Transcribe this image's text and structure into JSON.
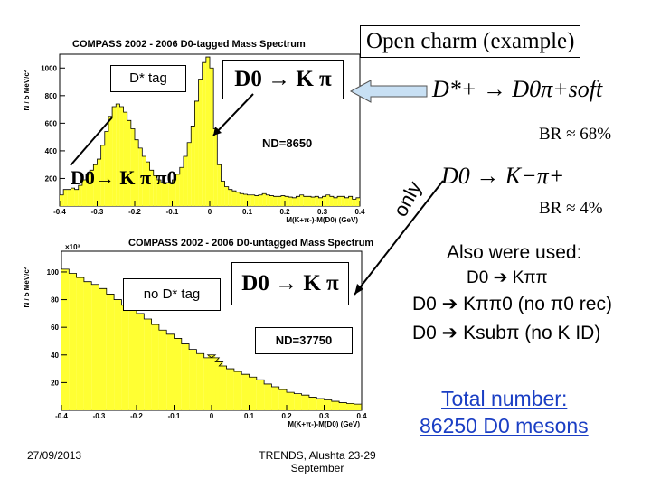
{
  "slide": {
    "title": "Open charm (example)",
    "date": "27/09/2013",
    "footer_line1": "TRENDS, Alushta 23-29",
    "footer_line2": "September",
    "only_label": "only",
    "accent": "#ffff33",
    "title_border": "#000000"
  },
  "top_panel": {
    "tag_label": "D* tag",
    "decay_label": "D0 → K π",
    "side_decay_label": "D0→ K π π0",
    "nd_label": "ND=8650"
  },
  "bottom_panel": {
    "tag_label": "no D* tag",
    "decay_label": "D0 → K π",
    "nd_label": "ND=37750"
  },
  "right_side": {
    "formula1": "D*+ → D0π+soft",
    "br1": "BR ≈ 68%",
    "formula2": "D0 → K−π+",
    "br2": "BR ≈ 4%",
    "also_used": "Also were used:",
    "line1": "D0 ➔ Kππ",
    "line2": "D0 ➔ Kππ0 (no π0 rec)",
    "line3": "D0 ➔ Ksubπ (no K ID)",
    "total_line1": "Total number:",
    "total_line2": "86250 D0 mesons"
  },
  "chart_data": [
    {
      "type": "bar",
      "title": "COMPASS 2002 - 2006 D0-tagged Mass Spectrum",
      "xlabel": "M(K+π-)-M(D0) (GeV)",
      "ylabel": "N / 5 MeV/c²",
      "xlim": [
        -0.4,
        0.4
      ],
      "ylim": [
        0,
        1100
      ],
      "x_ticks": [
        "-0.4",
        "-0.3",
        "-0.2",
        "-0.1",
        "0",
        "0.1",
        "0.2",
        "0.3",
        "0.4"
      ],
      "y_ticks": [
        "1000",
        "800",
        "600",
        "400",
        "200"
      ],
      "bin_width": 0.005,
      "x": [
        -0.4,
        -0.39,
        -0.38,
        -0.37,
        -0.36,
        -0.35,
        -0.34,
        -0.33,
        -0.32,
        -0.31,
        -0.3,
        -0.29,
        -0.28,
        -0.27,
        -0.26,
        -0.25,
        -0.24,
        -0.23,
        -0.22,
        -0.21,
        -0.2,
        -0.19,
        -0.18,
        -0.17,
        -0.16,
        -0.15,
        -0.14,
        -0.13,
        -0.12,
        -0.11,
        -0.1,
        -0.09,
        -0.08,
        -0.07,
        -0.06,
        -0.05,
        -0.04,
        -0.03,
        -0.02,
        -0.01,
        0,
        0.01,
        0.02,
        0.03,
        0.04,
        0.05,
        0.06,
        0.07,
        0.08,
        0.09,
        0.1,
        0.11,
        0.12,
        0.13,
        0.14,
        0.15,
        0.16,
        0.17,
        0.18,
        0.19,
        0.2,
        0.21,
        0.22,
        0.23,
        0.24,
        0.25,
        0.26,
        0.27,
        0.28,
        0.29,
        0.3,
        0.31,
        0.32,
        0.33,
        0.34,
        0.35,
        0.36,
        0.37,
        0.38,
        0.39,
        0.4
      ],
      "values": [
        80,
        120,
        120,
        130,
        120,
        150,
        190,
        230,
        260,
        300,
        340,
        440,
        540,
        650,
        720,
        740,
        720,
        680,
        620,
        560,
        480,
        420,
        360,
        320,
        260,
        220,
        190,
        170,
        170,
        170,
        190,
        230,
        280,
        360,
        460,
        580,
        760,
        920,
        1040,
        1080,
        1000,
        560,
        300,
        180,
        140,
        120,
        110,
        100,
        90,
        85,
        80,
        80,
        75,
        80,
        90,
        80,
        75,
        70,
        70,
        75,
        70,
        65,
        60,
        70,
        80,
        70,
        70,
        65,
        70,
        60,
        70,
        80,
        70,
        60,
        70,
        70,
        60,
        70,
        50,
        60,
        60
      ]
    },
    {
      "type": "bar",
      "title": "COMPASS 2002 - 2006 D0-untagged Mass Spectrum",
      "xlabel": "M(K+π-)-M(D0) (GeV)",
      "ylabel": "N / 5 MeV/c²",
      "axis_multiplier": "×10³",
      "xlim": [
        -0.4,
        0.4
      ],
      "ylim": [
        0,
        115
      ],
      "x_ticks": [
        "-0.4",
        "-0.3",
        "-0.2",
        "-0.1",
        "0",
        "0.1",
        "0.2",
        "0.3",
        "0.4"
      ],
      "y_ticks": [
        "100",
        "80",
        "60",
        "40",
        "20"
      ],
      "bin_width": 0.005,
      "x": [
        -0.4,
        -0.38,
        -0.36,
        -0.34,
        -0.32,
        -0.3,
        -0.28,
        -0.26,
        -0.24,
        -0.22,
        -0.2,
        -0.18,
        -0.16,
        -0.14,
        -0.12,
        -0.1,
        -0.08,
        -0.06,
        -0.04,
        -0.02,
        -0.01,
        0,
        0.01,
        0.02,
        0.04,
        0.06,
        0.08,
        0.1,
        0.12,
        0.14,
        0.16,
        0.18,
        0.2,
        0.22,
        0.24,
        0.26,
        0.28,
        0.3,
        0.32,
        0.34,
        0.36,
        0.38,
        0.4
      ],
      "values": [
        102,
        99,
        96,
        93,
        91,
        88,
        84,
        80,
        76,
        73,
        70,
        66,
        62,
        58,
        55,
        52,
        48,
        44,
        41,
        38,
        40,
        38,
        35,
        32,
        30,
        28,
        26,
        24,
        22,
        19,
        17,
        15,
        13,
        12,
        11,
        9.5,
        8.5,
        7.5,
        6.5,
        5.5,
        5,
        4.5,
        4
      ]
    }
  ]
}
